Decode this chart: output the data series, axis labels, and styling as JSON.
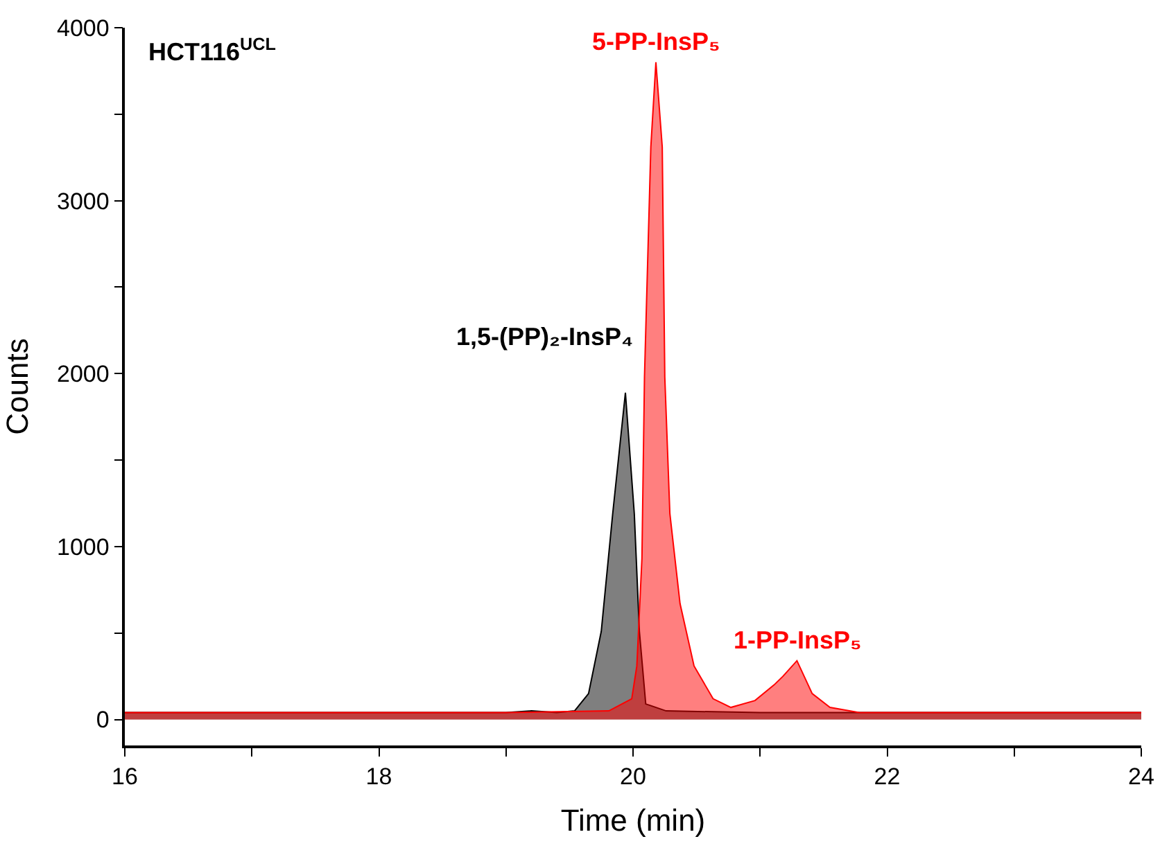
{
  "chart_data": {
    "type": "area",
    "xlabel": "Time (min)",
    "ylabel": "Counts",
    "xlim": [
      16,
      24
    ],
    "ylim": [
      -150,
      4000
    ],
    "xticks": [
      16,
      {
        "value": 17,
        "label": null
      },
      18,
      {
        "value": 19,
        "label": null
      },
      20,
      {
        "value": 21,
        "label": null
      },
      22,
      {
        "value": 23,
        "label": null
      },
      24
    ],
    "yticks": [
      0,
      {
        "value": 500,
        "label": null
      },
      1000,
      {
        "value": 1500,
        "label": null
      },
      2000,
      {
        "value": 2500,
        "label": null
      },
      3000,
      {
        "value": 3500,
        "label": null
      },
      4000
    ],
    "series": [
      {
        "color": "#000000",
        "x": [
          16,
          18,
          19,
          19.2,
          19.4,
          19.54,
          19.65,
          19.75,
          19.84,
          19.94,
          20.01,
          20.05,
          20.1,
          20.26,
          21,
          22,
          24
        ],
        "values": [
          40,
          40,
          40,
          50,
          40,
          50,
          150,
          510,
          1190,
          1890,
          1190,
          510,
          90,
          50,
          40,
          40,
          40
        ]
      },
      {
        "color": "#ff0000",
        "x": [
          16,
          19,
          19.81,
          19.99,
          20.03,
          20.07,
          20.09,
          20.14,
          20.18,
          20.23,
          20.25,
          20.29,
          20.37,
          20.48,
          20.63,
          20.77,
          20.96,
          21.11,
          21.18,
          21.29,
          21.41,
          21.55,
          21.78,
          22,
          24
        ],
        "values": [
          40,
          40,
          50,
          120,
          310,
          930,
          1980,
          3310,
          3800,
          3310,
          1980,
          1190,
          670,
          310,
          120,
          70,
          110,
          200,
          250,
          340,
          150,
          70,
          40,
          40,
          40
        ]
      }
    ],
    "annotations": [
      "HCT116$^{UCL}$",
      {
        "text": "5-PP-InsP₅",
        "x": 20.18,
        "y": 3800
      },
      {
        "text": "1,5-(PP)₂-InsP₄",
        "x": 19.94,
        "y": 1890
      },
      {
        "text": "1-PP-InsP₅",
        "x": 21.29,
        "y": 340
      }
    ]
  }
}
